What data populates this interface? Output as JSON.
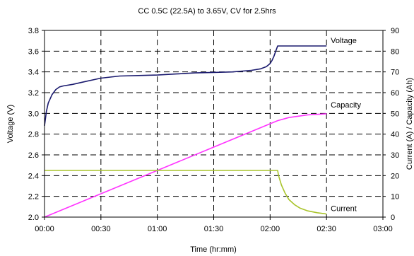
{
  "chart_data": {
    "type": "line",
    "title": "CC 0.5C (22.5A) to 3.65V, CV for 2.5hrs",
    "xlabel": "Time (hr:mm)",
    "ylabel": "Voltage (V)",
    "y2label": "Current (A) / Capacity (Ah)",
    "xlim": [
      0,
      180
    ],
    "ylim": [
      2.0,
      3.8
    ],
    "y2lim": [
      0,
      90
    ],
    "x_ticks": [
      0,
      30,
      60,
      90,
      120,
      150,
      180
    ],
    "x_tick_labels": [
      "00:00",
      "00:30",
      "01:00",
      "01:30",
      "02:00",
      "02:30",
      "03:00"
    ],
    "y_ticks": [
      2.0,
      2.2,
      2.4,
      2.6,
      2.8,
      3.0,
      3.2,
      3.4,
      3.6,
      3.8
    ],
    "y_tick_labels": [
      "2.0",
      "2.2",
      "2.4",
      "2.6",
      "2.8",
      "3.0",
      "3.2",
      "3.4",
      "3.6",
      "3.8"
    ],
    "y2_ticks": [
      0,
      10,
      20,
      30,
      40,
      50,
      60,
      70,
      80,
      90
    ],
    "y2_tick_labels": [
      "0",
      "10",
      "20",
      "30",
      "40",
      "50",
      "60",
      "70",
      "80",
      "90"
    ],
    "grid": true,
    "series": [
      {
        "name": "Voltage",
        "axis": "left",
        "color": "#1a1a6e",
        "x": [
          0,
          1,
          2,
          4,
          6,
          8,
          10,
          15,
          20,
          30,
          40,
          50,
          60,
          70,
          80,
          90,
          100,
          110,
          115,
          118,
          120,
          121,
          122,
          123,
          124,
          125,
          127,
          130,
          140,
          150
        ],
        "y": [
          2.88,
          3.02,
          3.1,
          3.18,
          3.23,
          3.255,
          3.265,
          3.28,
          3.3,
          3.34,
          3.36,
          3.365,
          3.37,
          3.38,
          3.39,
          3.395,
          3.4,
          3.415,
          3.43,
          3.45,
          3.48,
          3.51,
          3.55,
          3.6,
          3.65,
          3.65,
          3.65,
          3.65,
          3.65,
          3.65
        ]
      },
      {
        "name": "Capacity",
        "axis": "right",
        "color": "#ff33ff",
        "x": [
          0,
          30,
          60,
          90,
          120,
          124,
          130,
          140,
          150
        ],
        "y": [
          0,
          11.25,
          22.5,
          33.75,
          45,
          46.5,
          48,
          49.3,
          49.8
        ]
      },
      {
        "name": "Current",
        "axis": "right",
        "color": "#a9c42b",
        "x": [
          0,
          124,
          124.5,
          126,
          128,
          130,
          133,
          136,
          140,
          145,
          150
        ],
        "y": [
          22.5,
          22.5,
          20,
          15.5,
          11.5,
          8.5,
          6,
          4.3,
          3,
          2.1,
          1.5
        ]
      }
    ]
  }
}
